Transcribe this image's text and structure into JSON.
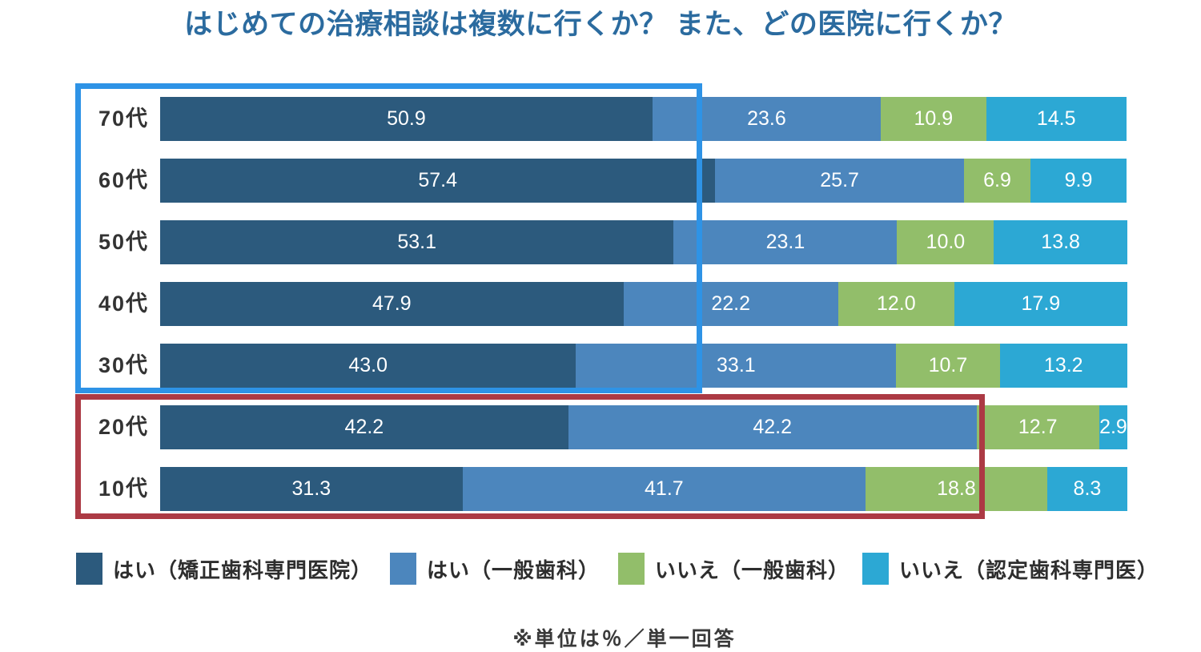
{
  "chart_data": {
    "type": "bar",
    "orientation": "horizontal",
    "stacked": true,
    "unit": "%",
    "title": "はじめての治療相談は複数に行くか？ また、どの医院に行くか？",
    "note": "※単位は％／単一回答",
    "xlim": [
      0,
      100
    ],
    "grid": false,
    "legend_position": "bottom",
    "categories": [
      "70代",
      "60代",
      "50代",
      "40代",
      "30代",
      "20代",
      "10代"
    ],
    "series": [
      {
        "name": "はい（矯正歯科専門医院）",
        "color": "#2C5A7D",
        "values": [
          50.9,
          57.4,
          53.1,
          47.9,
          43.0,
          42.2,
          31.3
        ],
        "display": [
          "50.9",
          "57.4",
          "53.1",
          "47.9",
          "43.0",
          "42.2",
          "31.3"
        ]
      },
      {
        "name": "はい（一般歯科）",
        "color": "#4C86BD",
        "values": [
          23.6,
          25.7,
          23.1,
          22.2,
          33.1,
          42.2,
          41.7
        ],
        "display": [
          "23.6",
          "25.7",
          "23.1",
          "22.2",
          "33.1",
          "42.2",
          "41.7"
        ]
      },
      {
        "name": "いいえ（一般歯科）",
        "color": "#92BE6A",
        "values": [
          10.9,
          6.9,
          10.0,
          12.0,
          10.7,
          12.7,
          18.8
        ],
        "display": [
          "10.9",
          "6.9",
          "10.0",
          "12.0",
          "10.7",
          "12.7",
          "18.8"
        ]
      },
      {
        "name": "いいえ（認定歯科専門医）",
        "color": "#2CA8D4",
        "values": [
          14.5,
          9.9,
          13.8,
          17.9,
          13.2,
          2.9,
          8.3
        ],
        "display": [
          "14.5",
          "9.9",
          "13.8",
          "17.9",
          "13.2",
          "2.9",
          "8.3"
        ]
      }
    ],
    "highlights": [
      {
        "label": "blue-box",
        "color": "#2E93E6",
        "rows": [
          "70代",
          "60代",
          "50代",
          "40代",
          "30代"
        ]
      },
      {
        "label": "red-box",
        "color": "#AC3A44",
        "rows": [
          "20代",
          "10代"
        ]
      }
    ]
  },
  "colors": {
    "title_text": "#2B6B9F",
    "category_text": "#333333",
    "value_text": "#FFFFFF",
    "footnote_text": "#3A3A3A",
    "background": "#FFFFFF"
  }
}
